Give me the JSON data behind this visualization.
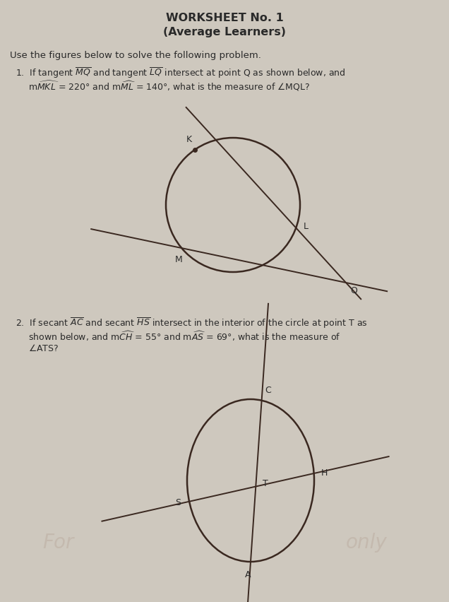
{
  "bg_color": "#cec8be",
  "text_color": "#2a2a2a",
  "circle_color": "#3a2820",
  "line_color": "#3a2820",
  "title_line1": "WORKSHEET No. 1",
  "title_line2": "(Average Learners)",
  "instruction": "Use the figures below to solve the following problem.",
  "fig_width": 6.36,
  "fig_height": 8.52,
  "dpi": 100
}
